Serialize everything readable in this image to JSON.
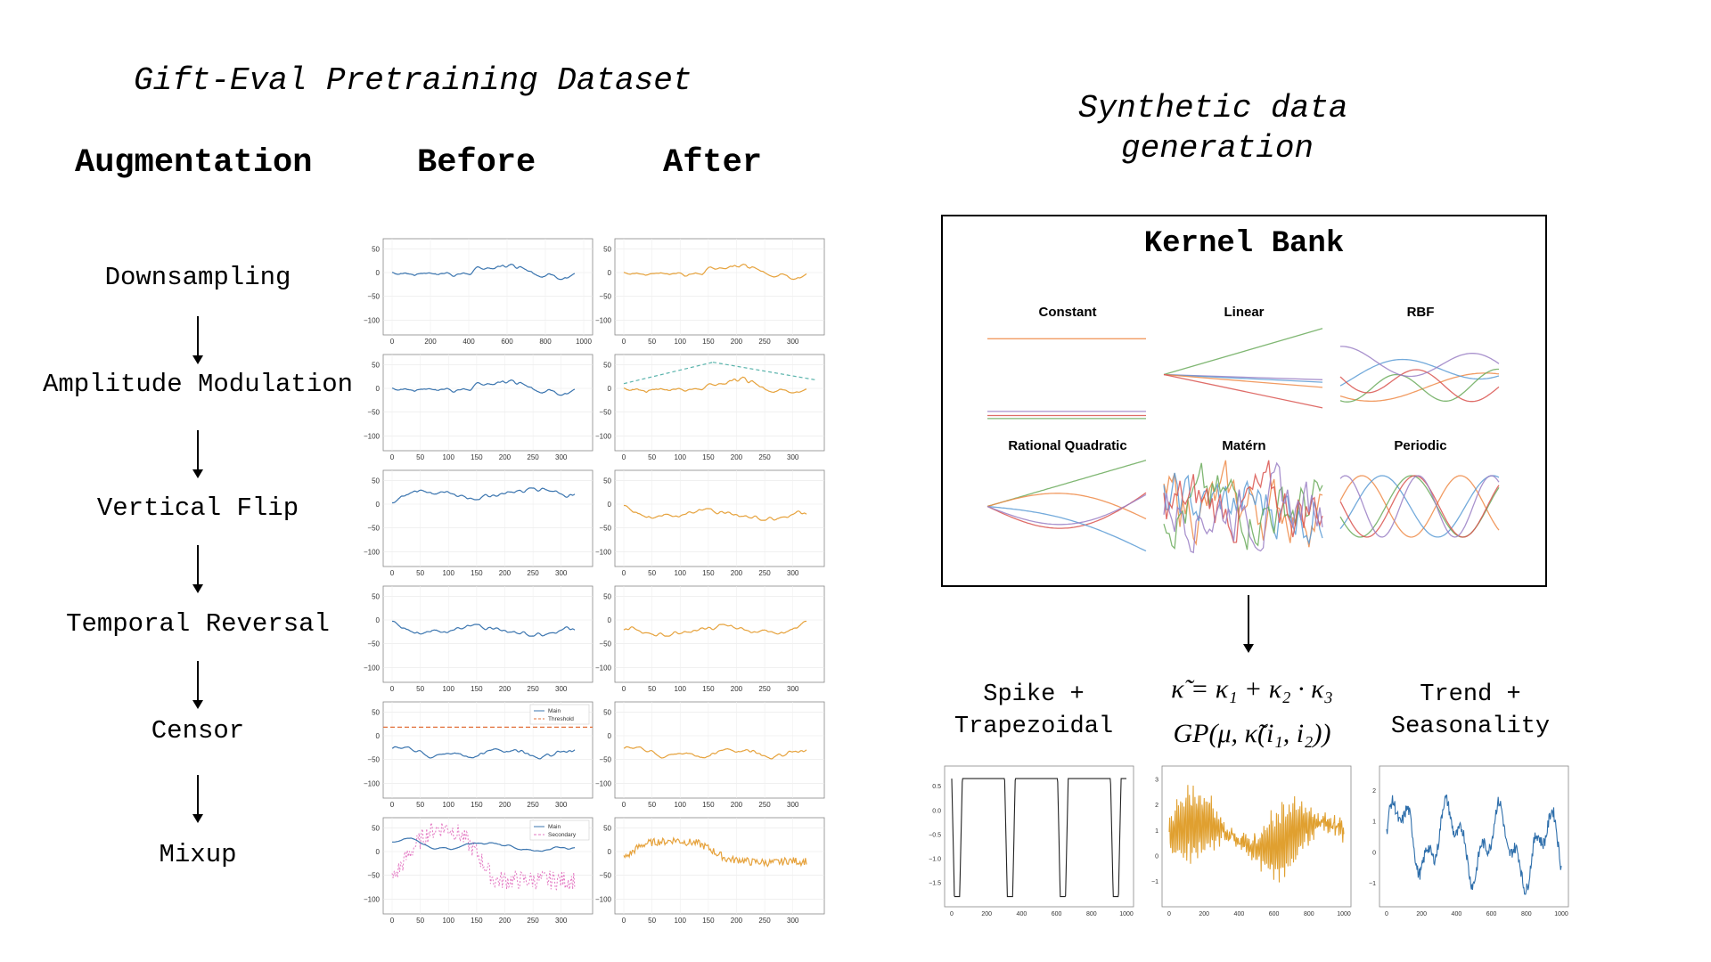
{
  "left_title": "Gift-Eval Pretraining Dataset",
  "right_title_line1": "Synthetic data",
  "right_title_line2": "generation",
  "column_headers": {
    "augmentation": "Augmentation",
    "before": "Before",
    "after": "After"
  },
  "augmentations": [
    "Downsampling",
    "Amplitude Modulation",
    "Vertical Flip",
    "Temporal Reversal",
    "Censor",
    "Mixup"
  ],
  "plot_axes": {
    "y_ticks": [
      "50",
      "0",
      "−50",
      "−100"
    ],
    "x_ticks_full": [
      "0",
      "200",
      "400",
      "600",
      "800",
      "1000"
    ],
    "x_ticks_short": [
      "0",
      "50",
      "100",
      "150",
      "200",
      "250",
      "300"
    ]
  },
  "legends": {
    "censor": [
      "Main",
      "Threshold"
    ],
    "mixup": [
      "Main",
      "Secondary"
    ]
  },
  "kernel_bank": {
    "title": "Kernel Bank",
    "kernels": [
      "Constant",
      "Linear",
      "RBF",
      "Rational Quadratic",
      "Matérn",
      "Periodic"
    ]
  },
  "outputs": {
    "spike": {
      "line1": "Spike +",
      "line2": "Trapezoidal"
    },
    "formula1": "κ̃ = κ₁ + κ₂ · κ₃",
    "formula2": "GP(μ, κ̃(i₁, i₂))",
    "trend": {
      "line1": "Trend +",
      "line2": "Seasonality"
    }
  },
  "output_axes": {
    "x_ticks": [
      "0",
      "200",
      "400",
      "600",
      "800",
      "1000"
    ],
    "spike_y_ticks": [
      "0.5",
      "0.0",
      "−0.5",
      "−1.0",
      "−1.5"
    ],
    "gp_y_ticks": [
      "3",
      "2",
      "1",
      "0",
      "−1"
    ],
    "trend_y_ticks": [
      "2",
      "1",
      "0",
      "−1"
    ]
  },
  "colors": {
    "before_line": "#3b75af",
    "after_line": "#e6a23c",
    "threshold": "#e2703a",
    "secondary": "#e377c2",
    "mod_trend": "#5ab4ac",
    "kernel_palette": [
      "#ef8a47",
      "#5b9bd5",
      "#6aaa5a",
      "#d9534f",
      "#9a7fc4"
    ],
    "spike_line": "#222222",
    "gp_line": "#e0a030",
    "trend_line": "#2f6fab"
  }
}
